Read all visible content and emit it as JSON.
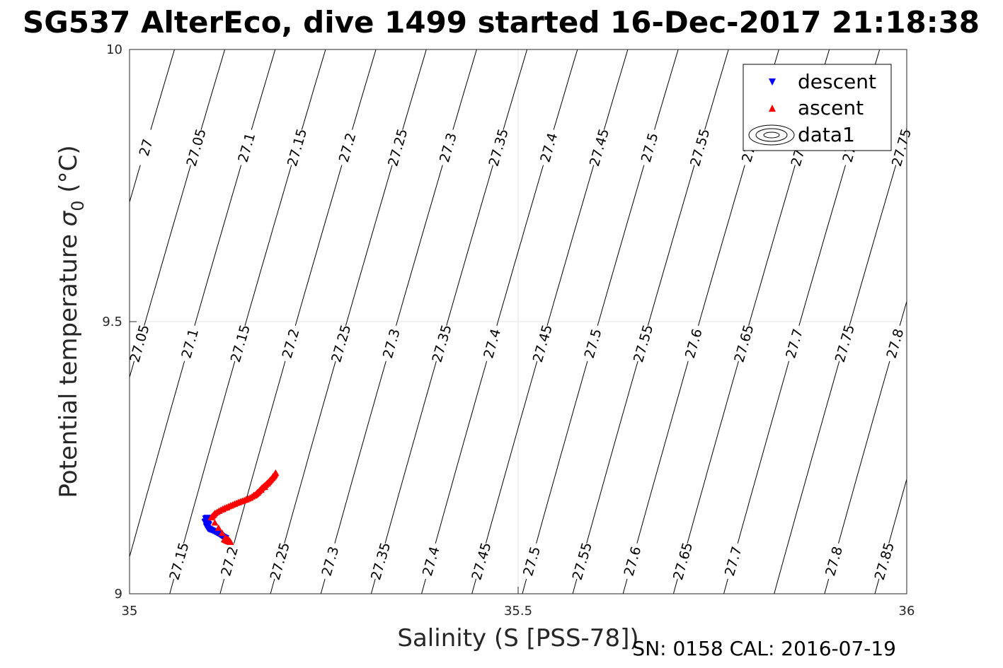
{
  "figure": {
    "title": "SG537 AlterEco, dive 1499 started 16-Dec-2017 21:18:38",
    "footer": "SN: 0158  CAL: 2016-07-19"
  },
  "chart_data": {
    "type": "scatter",
    "xlabel": "Salinity (S [PSS-78])",
    "ylabel": "Potential temperature σ₀ (°C)",
    "xlim": [
      35,
      36
    ],
    "ylim": [
      9,
      10
    ],
    "xticks": [
      "35",
      "35.5",
      "36"
    ],
    "yticks": [
      "9",
      "9.5",
      "10"
    ],
    "grid": true,
    "legend_position": "top-right",
    "legend": [
      {
        "label": "descent",
        "marker": "triangle-down",
        "color": "#0000ff"
      },
      {
        "label": "ascent",
        "marker": "triangle-up",
        "color": "#ff0000"
      },
      {
        "label": "data1",
        "marker": "contour",
        "color": "#000000"
      }
    ],
    "contours": {
      "levels": [
        27.0,
        27.05,
        27.1,
        27.15,
        27.2,
        27.25,
        27.3,
        27.35,
        27.4,
        27.45,
        27.5,
        27.55,
        27.6,
        27.65,
        27.7,
        27.75,
        27.8,
        27.85
      ],
      "labels_top_row": [
        "27",
        "27.05",
        "27.1",
        "27.15",
        "27.2",
        "27.25",
        "27.3",
        "27.35",
        "27.4",
        "27.45",
        "27.5",
        "27.55",
        "27.6",
        "27.65",
        "27.7",
        "27.75"
      ],
      "labels_mid_row": [
        "27.05",
        "27.1",
        "27.15",
        "27.2",
        "27.25",
        "27.3",
        "27.35",
        "27.4",
        "27.45",
        "27.5",
        "27.55",
        "27.6",
        "27.65",
        "27.7",
        "27.75",
        "27.8"
      ],
      "labels_bottom_row": [
        "27.15",
        "27.2",
        "27.25",
        "27.3",
        "27.35",
        "27.4",
        "27.45",
        "27.5",
        "27.55",
        "27.6",
        "27.65",
        "27.7",
        "27.8",
        "27.85"
      ]
    },
    "series": [
      {
        "name": "descent",
        "color": "#0000ff",
        "points": [
          [
            35.1,
            9.14
          ],
          [
            35.098,
            9.138
          ],
          [
            35.1,
            9.135
          ],
          [
            35.097,
            9.132
          ],
          [
            35.1,
            9.13
          ],
          [
            35.102,
            9.127
          ],
          [
            35.099,
            9.124
          ],
          [
            35.101,
            9.12
          ],
          [
            35.104,
            9.118
          ],
          [
            35.11,
            9.114
          ],
          [
            35.115,
            9.11
          ],
          [
            35.12,
            9.105
          ],
          [
            35.124,
            9.102
          ]
        ]
      },
      {
        "name": "ascent",
        "color": "#ff0000",
        "points": [
          [
            35.122,
            9.1
          ],
          [
            35.126,
            9.097
          ],
          [
            35.13,
            9.095
          ],
          [
            35.128,
            9.098
          ],
          [
            35.124,
            9.102
          ],
          [
            35.105,
            9.14
          ],
          [
            35.11,
            9.148
          ],
          [
            35.12,
            9.156
          ],
          [
            35.13,
            9.162
          ],
          [
            35.14,
            9.168
          ],
          [
            35.15,
            9.173
          ],
          [
            35.16,
            9.18
          ],
          [
            35.165,
            9.186
          ],
          [
            35.17,
            9.194
          ],
          [
            35.175,
            9.2
          ],
          [
            35.18,
            9.207
          ],
          [
            35.185,
            9.215
          ],
          [
            35.188,
            9.222
          ],
          [
            35.174,
            9.196
          ],
          [
            35.155,
            9.176
          ],
          [
            35.135,
            9.165
          ],
          [
            35.115,
            9.152
          ]
        ]
      }
    ]
  }
}
